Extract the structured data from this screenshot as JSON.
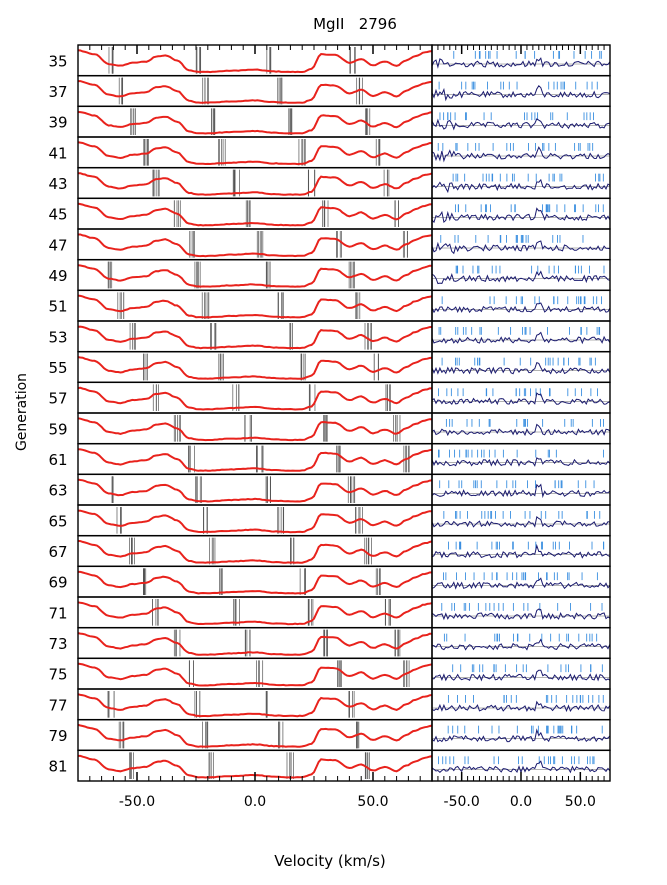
{
  "chart_data": {
    "type": "line",
    "title": "MgII   2796",
    "xlabel": "Velocity (km/s)",
    "ylabel": "Generation",
    "generations": [
      "35",
      "37",
      "39",
      "41",
      "43",
      "45",
      "47",
      "49",
      "51",
      "53",
      "55",
      "57",
      "59",
      "61",
      "63",
      "65",
      "67",
      "69",
      "71",
      "73",
      "75",
      "77",
      "79",
      "81"
    ],
    "left_panel": {
      "xlim": [
        -75,
        75
      ],
      "ticks": [
        -50,
        0,
        50
      ],
      "tick_labels": [
        "-50.0",
        "0.0",
        "50.0"
      ],
      "series": [
        {
          "color": "#e8221c",
          "kind": "model absorption profile"
        }
      ],
      "component_marker_color": "#555555"
    },
    "right_panel": {
      "xlim": [
        -75,
        75
      ],
      "ticks": [
        -50,
        0,
        50
      ],
      "tick_labels": [
        "-50.0",
        "0.0",
        "50.0"
      ],
      "series": [
        {
          "color": "#1a1a6e",
          "kind": "residuals"
        }
      ],
      "component_marker_color": "#3a8fe0"
    },
    "profile_knots": {
      "velocity": [
        -75,
        -68,
        -62,
        -57,
        -52,
        -46,
        -42,
        -38,
        -33,
        -28,
        -24,
        -20,
        -10,
        0,
        8,
        14,
        20,
        24,
        28,
        34,
        40,
        45,
        50,
        55,
        60,
        64,
        68,
        72,
        75
      ],
      "flux": [
        0.9,
        0.75,
        0.35,
        0.28,
        0.4,
        0.45,
        0.65,
        0.7,
        0.5,
        0.1,
        0.03,
        0.03,
        0.08,
        0.12,
        0.05,
        0.03,
        0.03,
        0.15,
        0.75,
        0.72,
        0.4,
        0.55,
        0.3,
        0.45,
        0.28,
        0.5,
        0.68,
        0.82,
        0.88
      ]
    }
  }
}
